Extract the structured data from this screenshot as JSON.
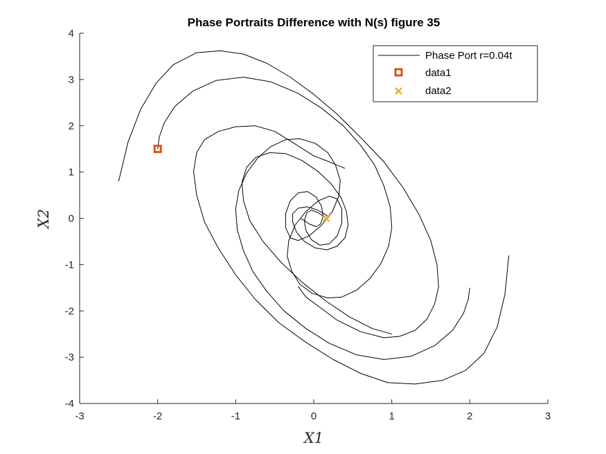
{
  "chart_data": {
    "type": "line",
    "title": "Phase Portraits Difference with N(s) figure 35",
    "xlabel": "X1",
    "ylabel": "X2",
    "xlim": [
      -3,
      3
    ],
    "ylim": [
      -4,
      4
    ],
    "xticks": [
      -3,
      -2,
      -1,
      0,
      1,
      2,
      3
    ],
    "yticks": [
      -4,
      -3,
      -2,
      -1,
      0,
      1,
      2,
      3,
      4
    ],
    "grid": false,
    "legend_position": "top-right",
    "series": [
      {
        "name": "Phase Port r=0.04t",
        "type": "line",
        "color": "#000000",
        "segments": [
          {
            "x": [
              -2.5,
              -2.38,
              -2.22,
              -2.02,
              -1.8,
              -1.5,
              -1.2,
              -0.9,
              -0.6,
              -0.3,
              0.0,
              0.3,
              0.6,
              0.9,
              1.15,
              1.35,
              1.5,
              1.58,
              1.6,
              1.55,
              1.45,
              1.3,
              1.1,
              0.9,
              0.6,
              0.3,
              0.1,
              -0.1,
              -0.2
            ],
            "y": [
              0.8,
              1.65,
              2.35,
              2.92,
              3.32,
              3.58,
              3.62,
              3.55,
              3.35,
              3.05,
              2.68,
              2.25,
              1.75,
              1.22,
              0.65,
              0.08,
              -0.48,
              -1.0,
              -1.48,
              -1.85,
              -2.18,
              -2.42,
              -2.55,
              -2.58,
              -2.45,
              -2.2,
              -1.95,
              -1.7,
              -1.47
            ]
          },
          {
            "x": [
              -2.0,
              -1.98,
              -1.92,
              -1.78,
              -1.55,
              -1.25,
              -0.9,
              -0.55,
              -0.2,
              0.1,
              0.38,
              0.6,
              0.78,
              0.9,
              0.98,
              1.0,
              0.96,
              0.86,
              0.72,
              0.55,
              0.36,
              0.18,
              -0.02,
              -0.18,
              -0.28,
              -0.34,
              -0.32,
              -0.24,
              -0.1,
              0.06,
              0.2,
              0.3,
              0.36,
              0.36,
              0.3,
              0.2,
              0.08,
              -0.03,
              -0.1,
              -0.12,
              -0.09,
              -0.03,
              0.06,
              0.12,
              0.17
            ],
            "y": [
              1.5,
              1.75,
              2.05,
              2.42,
              2.75,
              2.98,
              3.05,
              2.95,
              2.7,
              2.38,
              2.0,
              1.58,
              1.15,
              0.7,
              0.25,
              -0.2,
              -0.6,
              -0.98,
              -1.3,
              -1.55,
              -1.7,
              -1.72,
              -1.62,
              -1.42,
              -1.15,
              -0.82,
              -0.48,
              -0.15,
              0.15,
              0.38,
              0.48,
              0.42,
              0.2,
              -0.1,
              -0.38,
              -0.55,
              -0.58,
              -0.46,
              -0.26,
              -0.05,
              0.12,
              0.18,
              0.12,
              0.05,
              0.0
            ]
          },
          {
            "x": [
              2.5,
              2.45,
              2.35,
              2.18,
              1.95,
              1.65,
              1.3,
              0.95,
              0.6,
              0.25,
              -0.1,
              -0.45,
              -0.75,
              -1.0,
              -1.22,
              -1.4,
              -1.5,
              -1.54,
              -1.5,
              -1.4,
              -1.22,
              -1.0,
              -0.75,
              -0.5,
              -0.25,
              0.0,
              0.2,
              0.4
            ],
            "y": [
              -0.8,
              -1.65,
              -2.35,
              -2.92,
              -3.28,
              -3.5,
              -3.58,
              -3.55,
              -3.35,
              -3.05,
              -2.68,
              -2.25,
              -1.75,
              -1.22,
              -0.65,
              -0.08,
              0.5,
              1.02,
              1.42,
              1.7,
              1.88,
              1.98,
              2.0,
              1.88,
              1.62,
              1.35,
              1.22,
              1.08
            ]
          },
          {
            "x": [
              2.0,
              1.98,
              1.92,
              1.78,
              1.55,
              1.25,
              0.9,
              0.55,
              0.2,
              -0.1,
              -0.38,
              -0.6,
              -0.78,
              -0.9,
              -0.98,
              -1.0,
              -0.96,
              -0.86,
              -0.72,
              -0.55,
              -0.36,
              -0.18,
              0.02,
              0.18,
              0.28,
              0.34,
              0.32,
              0.24,
              0.1,
              -0.06,
              -0.2,
              -0.3,
              -0.36,
              -0.36,
              -0.3,
              -0.2,
              -0.08,
              0.03,
              0.1,
              0.12,
              0.09,
              0.03,
              -0.06,
              -0.12,
              -0.17
            ],
            "y": [
              -1.5,
              -1.75,
              -2.05,
              -2.42,
              -2.75,
              -2.98,
              -3.05,
              -2.95,
              -2.7,
              -2.38,
              -2.0,
              -1.58,
              -1.15,
              -0.7,
              -0.25,
              0.2,
              0.6,
              0.98,
              1.3,
              1.55,
              1.7,
              1.72,
              1.62,
              1.42,
              1.15,
              0.82,
              0.48,
              0.15,
              -0.15,
              -0.38,
              -0.48,
              -0.42,
              -0.2,
              0.1,
              0.38,
              0.55,
              0.58,
              0.46,
              0.26,
              0.05,
              -0.12,
              -0.18,
              -0.12,
              -0.05,
              0.0
            ]
          },
          {
            "x": [
              1.0,
              0.75,
              0.45,
              0.15,
              -0.15,
              -0.42,
              -0.65,
              -0.82,
              -0.9,
              -0.92,
              -0.86,
              -0.74,
              -0.56,
              -0.36,
              -0.15,
              0.05,
              0.22,
              0.35,
              0.42,
              0.44,
              0.4,
              0.3,
              0.17,
              0.02,
              -0.12,
              -0.22,
              -0.27,
              -0.27,
              -0.2,
              -0.08,
              0.05,
              0.15,
              0.2
            ],
            "y": [
              -2.5,
              -2.38,
              -2.12,
              -1.78,
              -1.38,
              -0.95,
              -0.5,
              -0.05,
              0.38,
              0.78,
              1.1,
              1.32,
              1.42,
              1.4,
              1.25,
              1.02,
              0.75,
              0.45,
              0.15,
              -0.15,
              -0.42,
              -0.6,
              -0.68,
              -0.64,
              -0.5,
              -0.3,
              -0.08,
              0.1,
              0.22,
              0.25,
              0.18,
              0.08,
              0.02
            ]
          }
        ]
      },
      {
        "name": "data1",
        "type": "scatter",
        "marker": "square",
        "color": "#D95319",
        "points": [
          {
            "x": -2.0,
            "y": 1.5
          }
        ]
      },
      {
        "name": "data2",
        "type": "scatter",
        "marker": "x",
        "color": "#EDB120",
        "points": [
          {
            "x": 0.16,
            "y": 0.0
          }
        ]
      }
    ]
  }
}
